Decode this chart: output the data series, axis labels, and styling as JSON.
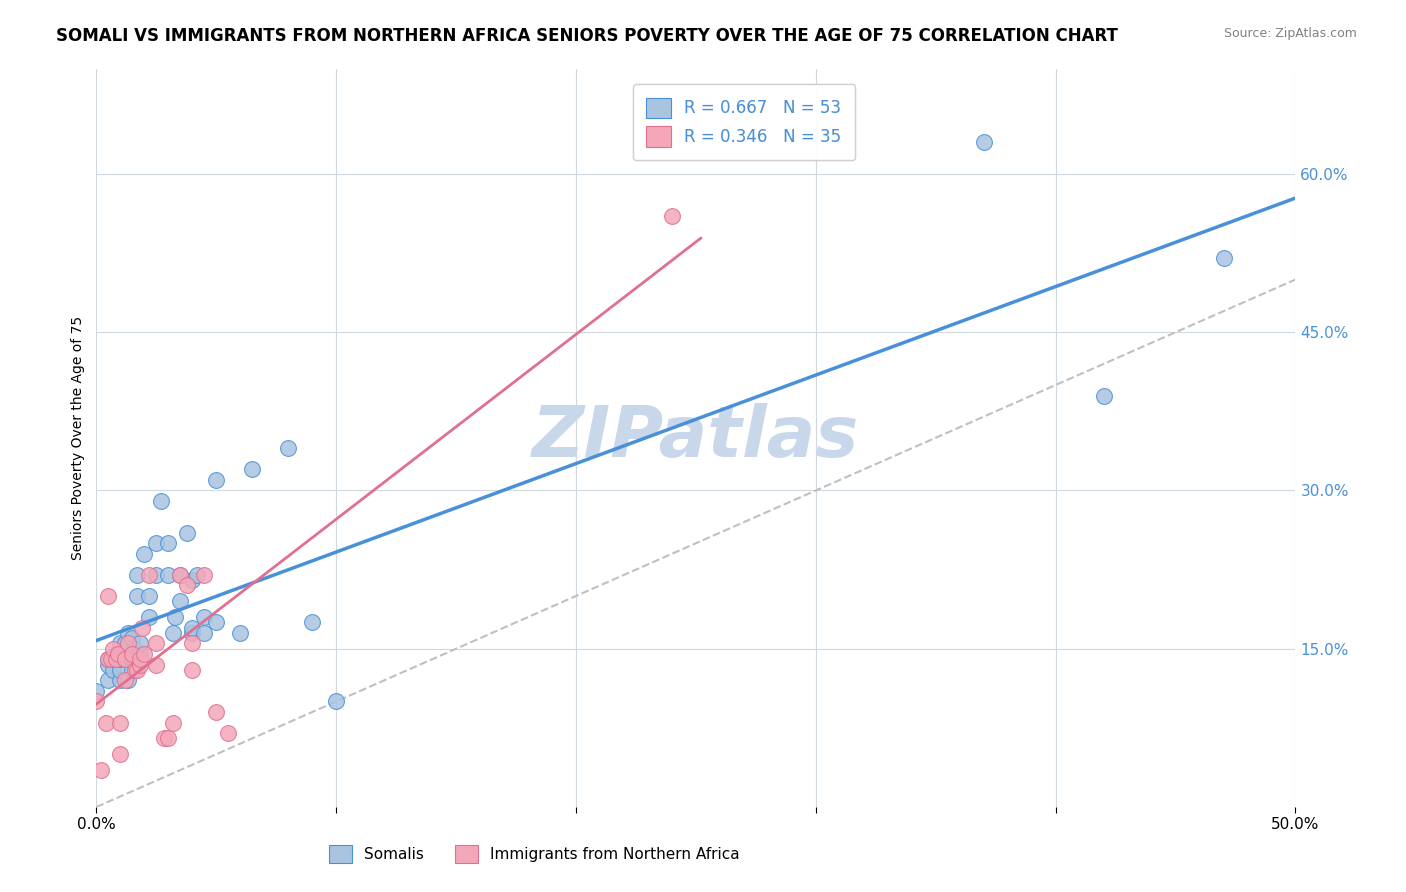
{
  "title": "SOMALI VS IMMIGRANTS FROM NORTHERN AFRICA SENIORS POVERTY OVER THE AGE OF 75 CORRELATION CHART",
  "source": "Source: ZipAtlas.com",
  "ylabel": "Seniors Poverty Over the Age of 75",
  "xlim": [
    0,
    0.5
  ],
  "ylim": [
    0,
    0.7
  ],
  "yticks": [
    0.15,
    0.3,
    0.45,
    0.6
  ],
  "ytick_labels": [
    "15.0%",
    "30.0%",
    "45.0%",
    "60.0%"
  ],
  "xticks": [
    0.0,
    0.1,
    0.2,
    0.3,
    0.4,
    0.5
  ],
  "xtick_labels": [
    "0.0%",
    "",
    "",
    "",
    "",
    "50.0%"
  ],
  "blue_scatter_color": "#a8c4e0",
  "pink_scatter_color": "#f4a7b9",
  "trendline_blue": "#4a90d9",
  "trendline_pink": "#e07090",
  "trendline_dashed_color": "#c0c0c0",
  "watermark": "ZIPatlas",
  "watermark_color": "#c8d8ea",
  "R_blue": 0.667,
  "N_blue": 53,
  "R_pink": 0.346,
  "N_pink": 35,
  "label_somali": "Somalis",
  "label_nafr": "Immigrants from Northern Africa",
  "somali_x": [
    0.0,
    0.005,
    0.005,
    0.005,
    0.007,
    0.008,
    0.008,
    0.01,
    0.01,
    0.01,
    0.01,
    0.012,
    0.012,
    0.013,
    0.013,
    0.015,
    0.015,
    0.015,
    0.016,
    0.016,
    0.017,
    0.017,
    0.018,
    0.018,
    0.02,
    0.022,
    0.022,
    0.025,
    0.025,
    0.027,
    0.03,
    0.03,
    0.032,
    0.033,
    0.035,
    0.035,
    0.038,
    0.04,
    0.04,
    0.04,
    0.042,
    0.045,
    0.045,
    0.05,
    0.05,
    0.06,
    0.065,
    0.08,
    0.09,
    0.1,
    0.37,
    0.42,
    0.47
  ],
  "somali_y": [
    0.11,
    0.12,
    0.135,
    0.14,
    0.13,
    0.14,
    0.145,
    0.12,
    0.13,
    0.14,
    0.155,
    0.14,
    0.155,
    0.12,
    0.165,
    0.13,
    0.14,
    0.16,
    0.135,
    0.15,
    0.2,
    0.22,
    0.145,
    0.155,
    0.24,
    0.18,
    0.2,
    0.22,
    0.25,
    0.29,
    0.22,
    0.25,
    0.165,
    0.18,
    0.195,
    0.22,
    0.26,
    0.165,
    0.17,
    0.215,
    0.22,
    0.165,
    0.18,
    0.175,
    0.31,
    0.165,
    0.32,
    0.34,
    0.175,
    0.1,
    0.63,
    0.39,
    0.52
  ],
  "nafr_x": [
    0.0,
    0.002,
    0.004,
    0.005,
    0.005,
    0.006,
    0.007,
    0.008,
    0.009,
    0.01,
    0.01,
    0.012,
    0.012,
    0.013,
    0.015,
    0.016,
    0.017,
    0.018,
    0.018,
    0.019,
    0.02,
    0.022,
    0.025,
    0.025,
    0.028,
    0.03,
    0.032,
    0.035,
    0.038,
    0.04,
    0.04,
    0.045,
    0.05,
    0.055,
    0.24
  ],
  "nafr_y": [
    0.1,
    0.035,
    0.08,
    0.14,
    0.2,
    0.14,
    0.15,
    0.14,
    0.145,
    0.05,
    0.08,
    0.12,
    0.14,
    0.155,
    0.145,
    0.13,
    0.13,
    0.135,
    0.14,
    0.17,
    0.145,
    0.22,
    0.135,
    0.155,
    0.065,
    0.065,
    0.08,
    0.22,
    0.21,
    0.13,
    0.155,
    0.22,
    0.09,
    0.07,
    0.56
  ]
}
